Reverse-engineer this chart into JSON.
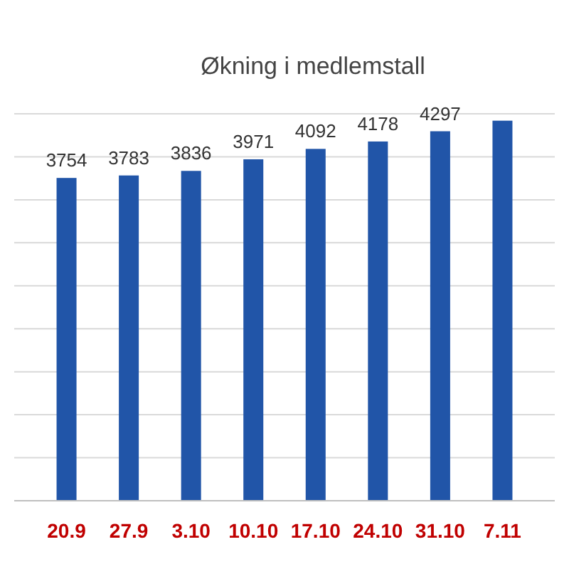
{
  "chart_data": {
    "type": "bar",
    "title": "Økning i medlemstall",
    "categories": [
      "20.9",
      "27.9",
      "3.10",
      "10.10",
      "17.10",
      "24.10",
      "31.10",
      "7.11"
    ],
    "values": [
      3754,
      3783,
      3836,
      3971,
      4092,
      4178,
      4297,
      4420
    ],
    "value_labels": [
      "3754",
      "3783",
      "3836",
      "3971",
      "4092",
      "4178",
      "4297",
      null
    ],
    "color": "#2155a8",
    "ylim": [
      0,
      4500
    ],
    "yticks": [
      {
        "value": 0,
        "label": null
      },
      {
        "value": 500,
        "label": null
      },
      {
        "value": 1000,
        "label": null
      },
      {
        "value": 1500,
        "label": null
      },
      {
        "value": 2000,
        "label": null
      },
      {
        "value": 2500,
        "label": null
      },
      {
        "value": 3000,
        "label": null
      },
      {
        "value": 3500,
        "label": null
      },
      {
        "value": 4000,
        "label": null
      },
      {
        "value": 4500,
        "label": null
      }
    ],
    "tick_labels": "x",
    "grid": "y"
  }
}
